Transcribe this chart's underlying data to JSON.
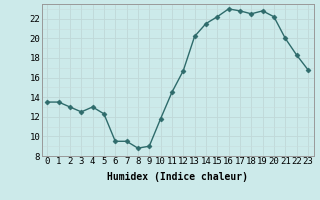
{
  "x": [
    0,
    1,
    2,
    3,
    4,
    5,
    6,
    7,
    8,
    9,
    10,
    11,
    12,
    13,
    14,
    15,
    16,
    17,
    18,
    19,
    20,
    21,
    22,
    23
  ],
  "y": [
    13.5,
    13.5,
    13.0,
    12.5,
    13.0,
    12.3,
    9.5,
    9.5,
    8.8,
    9.0,
    11.8,
    14.5,
    16.7,
    20.2,
    21.5,
    22.2,
    23.0,
    22.8,
    22.5,
    22.8,
    22.2,
    20.0,
    18.3,
    16.8
  ],
  "line_color": "#2e6b6b",
  "marker": "D",
  "marker_size": 2.5,
  "bg_color": "#cceaea",
  "grid_major_color": "#bbdddd",
  "grid_minor_color": "#ddeeff",
  "xlabel": "Humidex (Indice chaleur)",
  "ylim": [
    8,
    23
  ],
  "xlim": [
    -0.5,
    23.5
  ],
  "yticks": [
    8,
    10,
    12,
    14,
    16,
    18,
    20,
    22
  ],
  "xticks": [
    0,
    1,
    2,
    3,
    4,
    5,
    6,
    7,
    8,
    9,
    10,
    11,
    12,
    13,
    14,
    15,
    16,
    17,
    18,
    19,
    20,
    21,
    22,
    23
  ],
  "xlabel_fontsize": 7,
  "tick_fontsize": 6.5,
  "line_width": 1.0
}
